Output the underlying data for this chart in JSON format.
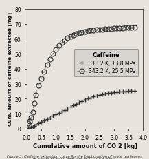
{
  "title": "",
  "xlabel": "Cumulative amount of CO 2 [kg]",
  "ylabel": "Cum. amount of caffeine extracted [mg]",
  "xlim": [
    0,
    4.0
  ],
  "ylim": [
    0,
    80
  ],
  "xticks": [
    0.0,
    0.5,
    1.0,
    1.5,
    2.0,
    2.5,
    3.0,
    3.5,
    4.0
  ],
  "yticks": [
    0,
    10,
    20,
    30,
    40,
    50,
    60,
    70,
    80
  ],
  "series1_label": "313.2 K, 13.8 MPa",
  "series2_label": "343.2 K, 25.5 MPa",
  "legend_title": "Caffeine",
  "series1_x": [
    0.05,
    0.1,
    0.15,
    0.2,
    0.25,
    0.3,
    0.4,
    0.5,
    0.6,
    0.7,
    0.8,
    0.9,
    1.0,
    1.1,
    1.2,
    1.3,
    1.4,
    1.5,
    1.6,
    1.7,
    1.8,
    1.9,
    2.0,
    2.1,
    2.2,
    2.3,
    2.4,
    2.5,
    2.6,
    2.7,
    2.8,
    2.9,
    3.0,
    3.1,
    3.2,
    3.3,
    3.4,
    3.5,
    3.6,
    3.7
  ],
  "series1_y": [
    0.3,
    0.6,
    1.0,
    1.5,
    2.0,
    2.5,
    3.5,
    4.5,
    5.5,
    6.5,
    7.5,
    8.5,
    9.5,
    10.5,
    11.5,
    12.5,
    13.5,
    14.5,
    15.5,
    16.5,
    17.5,
    18.5,
    19.5,
    20.2,
    20.8,
    21.4,
    22.0,
    22.5,
    23.0,
    23.4,
    23.7,
    24.0,
    24.3,
    24.5,
    24.7,
    24.9,
    25.0,
    25.1,
    25.2,
    25.3
  ],
  "series2_x": [
    0.05,
    0.1,
    0.15,
    0.2,
    0.25,
    0.3,
    0.4,
    0.5,
    0.6,
    0.7,
    0.8,
    0.9,
    1.0,
    1.1,
    1.2,
    1.3,
    1.4,
    1.5,
    1.6,
    1.7,
    1.8,
    1.9,
    2.0,
    2.1,
    2.2,
    2.3,
    2.4,
    2.5,
    2.6,
    2.7,
    2.8,
    2.9,
    3.0,
    3.1,
    3.2,
    3.3,
    3.4,
    3.5,
    3.6,
    3.7
  ],
  "series2_y": [
    3.5,
    5.0,
    7.5,
    11.0,
    17.0,
    22.5,
    29.0,
    33.5,
    38.0,
    42.5,
    46.5,
    50.0,
    53.0,
    55.5,
    57.5,
    59.0,
    60.5,
    61.5,
    62.5,
    63.2,
    63.8,
    64.3,
    64.8,
    65.2,
    65.5,
    65.8,
    66.0,
    66.2,
    66.4,
    66.6,
    66.7,
    66.8,
    67.0,
    67.1,
    67.2,
    67.3,
    67.4,
    67.5,
    67.5,
    67.6
  ],
  "bg_color": "#e8e4dd",
  "plot_bg": "#e8e4dd",
  "marker_color": "#333333",
  "caption_line1": "Figure 3: Caffeine extraction curve for the fractionation of maté tea leaves",
  "caption_line2": "in nature at a CO₂ flow rate of 1.2-1.8 g min⁻¹"
}
